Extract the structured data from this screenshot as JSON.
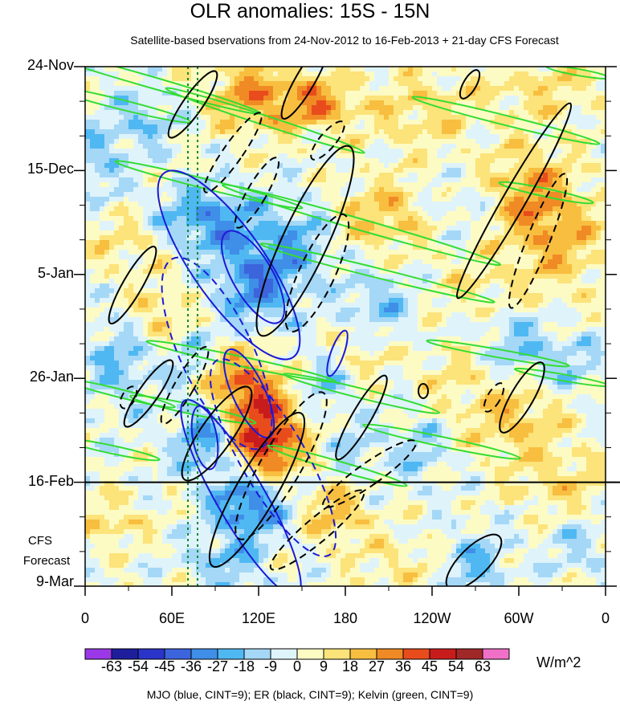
{
  "chart_data": {
    "type": "heatmap",
    "title": "OLR anomalies: 15S - 15N",
    "subtitle": "Satellite-based bservations from 24-Nov-2012 to 16-Feb-2013 + 21-day CFS Forecast",
    "x_axis": {
      "ticks": [
        "0",
        "60E",
        "120E",
        "180",
        "120W",
        "60W",
        "0"
      ],
      "longitudes_deg_east": [
        0,
        60,
        120,
        180,
        240,
        300,
        360
      ]
    },
    "y_axis": {
      "ticks": [
        "24-Nov",
        "15-Dec",
        "5-Jan",
        "26-Jan",
        "16-Feb",
        "9-Mar"
      ],
      "start": "2012-11-24",
      "end": "2013-03-09",
      "direction": "time increases downward"
    },
    "forecast_divider": "16-Feb",
    "forecast_label": [
      "CFS",
      "Forecast"
    ],
    "colorbar": {
      "labels": [
        "-63",
        "-54",
        "-45",
        "-36",
        "-27",
        "-18",
        "-9",
        "0",
        "9",
        "18",
        "27",
        "36",
        "45",
        "54",
        "63"
      ],
      "units": "W/m^2",
      "colors": [
        "#9a38e8",
        "#1e1e9c",
        "#2a34c8",
        "#3c64dc",
        "#3f8ee8",
        "#4fb8f2",
        "#a4d8f6",
        "#dff3fb",
        "#fdfbc4",
        "#fce37a",
        "#f8be3f",
        "#f08a24",
        "#e84c1c",
        "#c81c1c",
        "#a02828",
        "#f070c8"
      ]
    },
    "contour_overlays": [
      {
        "wave": "MJO",
        "color": "blue",
        "cint": 9
      },
      {
        "wave": "ER",
        "color": "black",
        "cint": 9
      },
      {
        "wave": "Kelvin",
        "color": "green",
        "cint": 9
      }
    ],
    "caption": "MJO (blue, CINT=9); ER (black, CINT=9); Kelvin (green, CINT=9)"
  }
}
